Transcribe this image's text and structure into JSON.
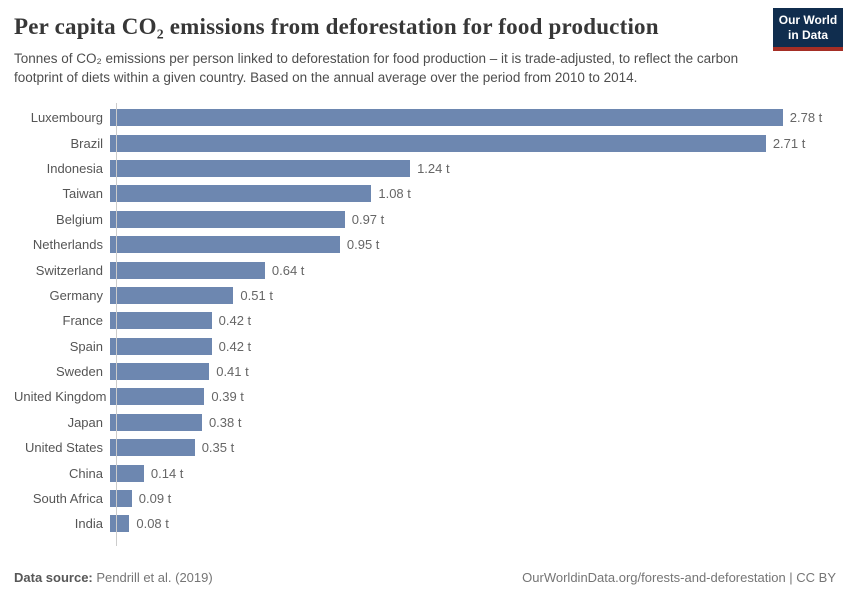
{
  "header": {
    "title": "Per capita CO₂ emissions from deforestation for food production",
    "subtitle": "Tonnes of CO₂ emissions per person linked to deforestation for food production – it is trade-adjusted, to reflect the carbon footprint of diets within a given country. Based on the annual average over the period from 2010 to 2014.",
    "logo": {
      "line1": "Our World",
      "line2": "in Data",
      "bg_color": "#102d4e",
      "accent_color": "#a52e25",
      "text_color": "#ffffff"
    }
  },
  "chart_data": {
    "type": "bar",
    "orientation": "horizontal",
    "title": "Per capita CO₂ emissions from deforestation for food production",
    "unit": "tonnes of CO₂ per person",
    "value_suffix": " t",
    "categories": [
      "Luxembourg",
      "Brazil",
      "Indonesia",
      "Taiwan",
      "Belgium",
      "Netherlands",
      "Switzerland",
      "Germany",
      "France",
      "Spain",
      "Sweden",
      "United Kingdom",
      "Japan",
      "United States",
      "China",
      "South Africa",
      "India"
    ],
    "values": [
      2.78,
      2.71,
      1.24,
      1.08,
      0.97,
      0.95,
      0.64,
      0.51,
      0.42,
      0.42,
      0.41,
      0.39,
      0.38,
      0.35,
      0.14,
      0.09,
      0.08
    ],
    "xlim": [
      0,
      2.9
    ],
    "grid": false,
    "legend": "none",
    "bar_color": "#6d87b0",
    "label_color": "#555555",
    "value_color": "#666666",
    "axis_color": "#cccccc"
  },
  "footer": {
    "source_label": "Data source:",
    "source_value": " Pendrill et al. (2019)",
    "credit": "OurWorldinData.org/forests-and-deforestation | CC BY"
  }
}
